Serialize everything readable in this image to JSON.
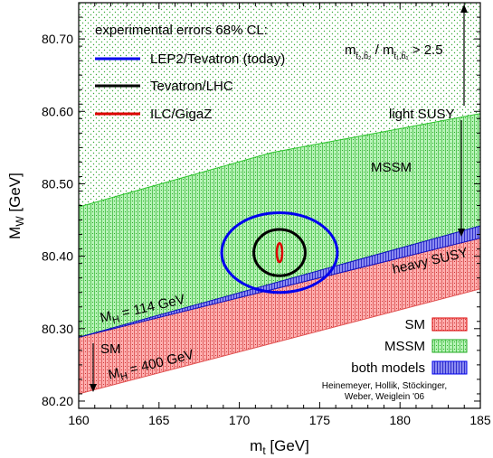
{
  "chart_data": {
    "type": "area",
    "x_axis": {
      "label_base": "m",
      "label_sub": "t",
      "label_unit": " [GeV]",
      "range": [
        160,
        185
      ],
      "ticks": [
        160,
        165,
        170,
        175,
        180,
        185
      ]
    },
    "y_axis": {
      "label_base": "M",
      "label_sub": "W",
      "label_unit": " [GeV]",
      "range": [
        80.19,
        80.75
      ],
      "ticks": [
        80.2,
        80.3,
        80.4,
        80.5,
        80.6,
        80.7
      ]
    },
    "regions": [
      {
        "name": "SM",
        "color": "#ff9a9a",
        "lower": [
          [
            160,
            80.21
          ],
          [
            185,
            80.355
          ]
        ],
        "upper": [
          [
            160,
            80.288
          ],
          [
            185,
            80.425
          ]
        ]
      },
      {
        "name": "MSSM",
        "color": "#9af09a",
        "lower": [
          [
            160,
            80.288
          ],
          [
            185,
            80.442
          ]
        ],
        "upper": [
          [
            160,
            80.468
          ],
          [
            172,
            80.543
          ],
          [
            185,
            80.597
          ]
        ]
      },
      {
        "name": "both models",
        "color": "#7a7aee",
        "lower": [
          [
            160,
            80.288
          ],
          [
            185,
            80.425
          ]
        ],
        "upper": [
          [
            160,
            80.288
          ],
          [
            185,
            80.442
          ]
        ]
      }
    ],
    "ellipses": [
      {
        "name": "LEP2/Tevatron (today)",
        "color": "#0000ee",
        "center": [
          172.5,
          80.405
        ],
        "half_width": [
          3.6,
          0.055
        ]
      },
      {
        "name": "Tevatron/LHC",
        "color": "#000000",
        "center": [
          172.5,
          80.405
        ],
        "half_width": [
          1.6,
          0.032
        ]
      },
      {
        "name": "ILC/GigaZ",
        "color": "#dd0000",
        "center": [
          172.5,
          80.405
        ],
        "half_width": [
          0.17,
          0.013
        ]
      }
    ],
    "legend": {
      "title": "experimental errors 68% CL:",
      "entries": [
        {
          "label": "LEP2/Tevatron (today)",
          "color": "#0000ee"
        },
        {
          "label": "Tevatron/LHC",
          "color": "#000000"
        },
        {
          "label": "ILC/GigaZ",
          "color": "#dd0000"
        }
      ]
    },
    "region_legend": [
      {
        "label": "SM",
        "color": "#dd0000",
        "fill": "#ff9a9a",
        "hatch": "#cc3333"
      },
      {
        "label": "MSSM",
        "color": "#00aa00",
        "fill": "#9af09a",
        "hatch": "#33bb33"
      },
      {
        "label": "both models",
        "color": "#0000ee",
        "fill": "#7a7aee",
        "hatch": "#2222cc"
      }
    ],
    "annotations": {
      "mssm": "MSSM",
      "light_susy": "light SUSY",
      "heavy_susy": "heavy SUSY",
      "sm": "SM",
      "mh114": {
        "pre": "M",
        "sub": "H",
        "post": " = 114 GeV"
      },
      "mh400": {
        "pre": "M",
        "sub": "H",
        "post": " = 400 GeV"
      },
      "mass_ratio": {
        "m1": "m",
        "sub1": "t̃₂,b̃₂",
        "slash": " / m",
        "sub2": "t̃₁,b̃₁",
        "post": " > 2.5"
      }
    },
    "credit": [
      "Heinemeyer, Hollik, Stöckinger,",
      "Weber, Weiglein '06"
    ],
    "grid": false
  }
}
